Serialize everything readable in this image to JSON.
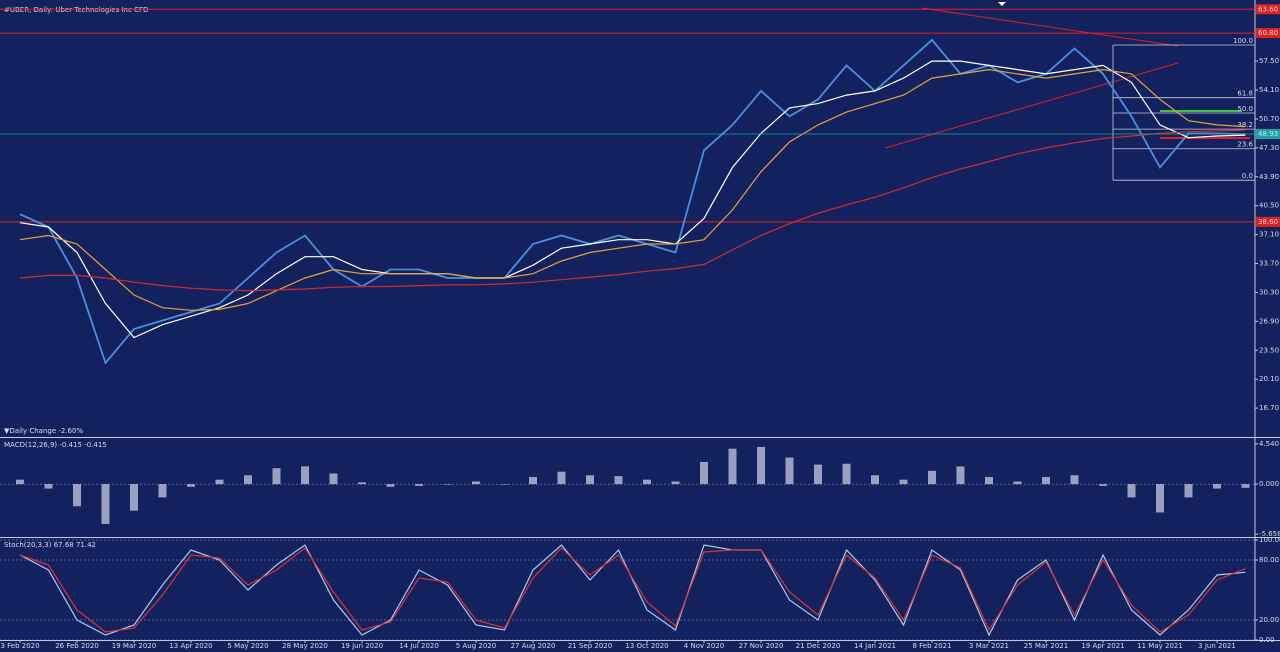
{
  "chart_data": [
    {
      "type": "line",
      "title": "#UBER, Daily: Uber Technologies Inc CFD",
      "annotation": "▼Daily Change -2.60%",
      "categories": [
        "3 Feb 2020",
        null,
        "26 Feb 2020",
        null,
        "19 Mar 2020",
        null,
        "13 Apr 2020",
        null,
        "5 May 2020",
        null,
        "28 May 2020",
        null,
        "19 Jun 2020",
        null,
        "14 Jul 2020",
        null,
        "5 Aug 2020",
        null,
        "27 Aug 2020",
        null,
        "21 Sep 2020",
        null,
        "13 Oct 2020",
        null,
        "4 Nov 2020",
        null,
        "27 Nov 2020",
        null,
        "21 Dec 2020",
        null,
        "14 Jan 2021",
        null,
        "8 Feb 2021",
        null,
        "3 Mar 2021",
        null,
        "25 Mar 2021",
        null,
        "19 Apr 2021",
        null,
        "11 May 2021",
        null,
        "3 Jun 2021",
        null
      ],
      "series": [
        {
          "color": "#4a8fe0",
          "values": [
            39.5,
            38,
            32,
            22,
            26,
            27,
            28,
            29,
            32,
            35,
            37,
            33,
            31,
            33,
            33,
            32,
            32,
            32,
            36,
            37,
            36,
            37,
            36,
            35,
            47,
            50,
            54,
            51,
            53,
            57,
            54,
            57,
            60,
            56,
            57,
            55,
            56,
            59,
            56,
            51,
            45,
            49,
            49,
            48.9
          ]
        },
        {
          "color": "#ffffff",
          "values": [
            38.5,
            38,
            35,
            29,
            25,
            26.5,
            27.5,
            28.5,
            30,
            32.5,
            34.5,
            34.5,
            33,
            32.5,
            32.5,
            32.5,
            32,
            32,
            33.5,
            35.5,
            36,
            36.5,
            36.5,
            36,
            39,
            45,
            49,
            52,
            52.5,
            53.5,
            54,
            55.5,
            57.5,
            57.5,
            57,
            56.5,
            56,
            56.5,
            57,
            55,
            50,
            48.5,
            48.7,
            48.8
          ]
        },
        {
          "color": "#e8a23a",
          "values": [
            36.5,
            37,
            36,
            33,
            30,
            28.5,
            28.2,
            28.3,
            29,
            30.5,
            32,
            33,
            32.5,
            32.5,
            32.5,
            32.5,
            32,
            32,
            32.5,
            34,
            35,
            35.5,
            36,
            36,
            36.5,
            40,
            44.5,
            48,
            50,
            51.5,
            52.5,
            53.5,
            55.5,
            56,
            56.5,
            56,
            55.5,
            56,
            56.5,
            56,
            53,
            50.5,
            50,
            49.8
          ]
        },
        {
          "color": "#d42a2a",
          "values": [
            32,
            32.3,
            32.3,
            32,
            31.5,
            31.1,
            30.8,
            30.6,
            30.5,
            30.6,
            30.7,
            30.9,
            31,
            31,
            31.1,
            31.2,
            31.2,
            31.3,
            31.5,
            31.8,
            32.1,
            32.4,
            32.8,
            33.1,
            33.6,
            35.3,
            37,
            38.4,
            39.6,
            40.6,
            41.5,
            42.6,
            43.8,
            44.8,
            45.7,
            46.6,
            47.3,
            47.9,
            48.4,
            48.7,
            49,
            49.2,
            49.3,
            49.4
          ]
        }
      ],
      "ylim": [
        13.3,
        64.1
      ],
      "yticks": [
        {
          "value": 57.5,
          "label": "57.50"
        },
        {
          "value": 54.1,
          "label": "54.10"
        },
        {
          "value": 50.7,
          "label": "50.70"
        },
        {
          "value": 47.3,
          "label": "47.30"
        },
        {
          "value": 43.9,
          "label": "43.90"
        },
        {
          "value": 40.5,
          "label": "40.50"
        },
        {
          "value": 37.1,
          "label": "37.10"
        },
        {
          "value": 33.7,
          "label": "33.70"
        },
        {
          "value": 30.3,
          "label": "30.30"
        },
        {
          "value": 26.9,
          "label": "26.90"
        },
        {
          "value": 23.5,
          "label": "23.50"
        },
        {
          "value": 20.1,
          "label": "20.10"
        },
        {
          "value": 16.7,
          "label": "16.70"
        }
      ],
      "hlines": [
        {
          "value": 63.6,
          "label": "63.60",
          "color": "#e02020"
        },
        {
          "value": 60.8,
          "label": "60.80",
          "color": "#e02020"
        },
        {
          "value": 38.6,
          "label": "38.60",
          "color": "#e02020"
        }
      ],
      "last_price": {
        "value": 48.93,
        "label": "48.93",
        "color": "#1aa3a3"
      },
      "fib": [
        {
          "value": 59.4,
          "label": "100.0"
        },
        {
          "value": 53.2,
          "label": "61.8"
        },
        {
          "value": 51.4,
          "label": "50.0"
        },
        {
          "value": 49.5,
          "label": "38.2"
        },
        {
          "value": 47.2,
          "label": "23.6"
        },
        {
          "value": 43.5,
          "label": "0.0"
        }
      ]
    },
    {
      "type": "bar",
      "title": "MACD(12,26,9) -0.415 -0.415",
      "color": "#c8cbe0",
      "values": [
        0.5,
        -0.5,
        -2.5,
        -4.5,
        -3,
        -1.5,
        -0.3,
        0.5,
        1,
        1.8,
        2,
        1.2,
        0.2,
        -0.3,
        -0.2,
        0,
        0.3,
        0,
        0.8,
        1.4,
        1,
        0.9,
        0.5,
        0.3,
        2.5,
        4,
        4.2,
        3,
        2.2,
        2.3,
        1,
        0.5,
        1.5,
        2,
        0.8,
        0.3,
        0.8,
        1,
        -0.2,
        -1.5,
        -3.2,
        -1.5,
        -0.5,
        -0.415
      ],
      "ylim": [
        -5.97,
        4.98
      ],
      "yticks": [
        {
          "value": 4.54,
          "label": "4.540"
        },
        {
          "value": 0,
          "label": "0.000"
        },
        {
          "value": -5.658,
          "label": "-5.658"
        }
      ]
    },
    {
      "type": "line",
      "title": "Stoch(20,3,3) 67.68 71.42",
      "grid": true,
      "series": [
        {
          "color": "#9fd0f5",
          "values": [
            85,
            70,
            20,
            5,
            15,
            55,
            90,
            80,
            50,
            75,
            95,
            40,
            5,
            20,
            70,
            55,
            15,
            10,
            70,
            95,
            60,
            90,
            30,
            10,
            95,
            90,
            90,
            40,
            20,
            90,
            60,
            15,
            90,
            70,
            5,
            60,
            80,
            20,
            85,
            30,
            5,
            30,
            65,
            67.68
          ]
        },
        {
          "color": "#e03030",
          "values": [
            85,
            75,
            30,
            8,
            12,
            45,
            85,
            82,
            55,
            70,
            92,
            48,
            10,
            18,
            62,
            58,
            20,
            12,
            62,
            92,
            65,
            85,
            38,
            14,
            88,
            90,
            90,
            48,
            25,
            85,
            62,
            20,
            85,
            72,
            10,
            55,
            78,
            25,
            80,
            35,
            8,
            25,
            60,
            71.42
          ]
        }
      ],
      "ylim": [
        0,
        100
      ],
      "yticks": [
        {
          "value": 100,
          "label": "100.00"
        },
        {
          "value": 80,
          "label": "80.00"
        },
        {
          "value": 20,
          "label": "20.00"
        },
        {
          "value": 0,
          "label": "0.00"
        }
      ]
    }
  ]
}
